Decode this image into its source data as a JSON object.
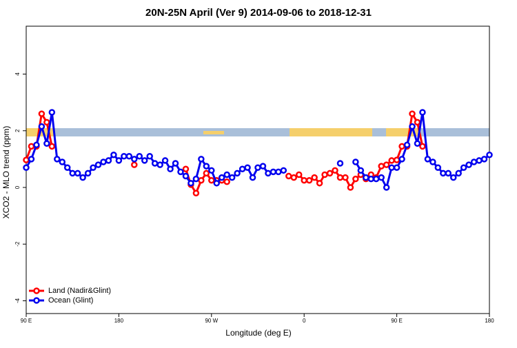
{
  "chart_data": {
    "type": "line",
    "title": "20N-25N April (Ver 9)   2014-09-06 to 2018-12-31",
    "x_label": "Longitude (deg E)",
    "y_label": "XCO2 - MLO trend (ppm)",
    "x": [
      90,
      95,
      100,
      105,
      110,
      115,
      120,
      125,
      130,
      135,
      140,
      145,
      150,
      155,
      160,
      165,
      170,
      175,
      180,
      185,
      190,
      195,
      200,
      205,
      210,
      215,
      220,
      225,
      230,
      235,
      240,
      245,
      250,
      255,
      260,
      265,
      270,
      275,
      280,
      285,
      290,
      295,
      300,
      305,
      310,
      315,
      320,
      325,
      330,
      335,
      340,
      345,
      350,
      355,
      360,
      365,
      370,
      375,
      380,
      385,
      390,
      395,
      400,
      405,
      410,
      415,
      420,
      425,
      430,
      435,
      440,
      445,
      450,
      455,
      460,
      465,
      470,
      475,
      480,
      485,
      490,
      495,
      500,
      505,
      510,
      515,
      520,
      525,
      530,
      535,
      540
    ],
    "series": [
      {
        "name": "Land (Nadir&Glint)",
        "color": "#ff0000",
        "values": [
          0.97,
          1.45,
          1.45,
          2.6,
          2.3,
          1.45,
          null,
          null,
          null,
          null,
          null,
          null,
          null,
          null,
          null,
          null,
          null,
          null,
          null,
          null,
          null,
          0.8,
          null,
          null,
          null,
          null,
          null,
          null,
          null,
          null,
          null,
          0.65,
          0.1,
          -0.2,
          0.25,
          0.5,
          0.25,
          0.25,
          0.25,
          0.2,
          null,
          null,
          null,
          null,
          null,
          null,
          null,
          null,
          null,
          null,
          null,
          0.4,
          0.35,
          0.45,
          0.25,
          0.25,
          0.35,
          0.15,
          0.45,
          0.5,
          0.6,
          0.35,
          0.35,
          0.0,
          0.3,
          0.45,
          0.3,
          0.45,
          0.35,
          0.75,
          0.8,
          0.95,
          0.97,
          1.45,
          1.45,
          2.6,
          2.3,
          1.45,
          null,
          null,
          null,
          null,
          null,
          null,
          null,
          null,
          null,
          null,
          null,
          null,
          null
        ]
      },
      {
        "name": "Ocean (Glint)",
        "color": "#0000ee",
        "values": [
          0.7,
          1.0,
          1.5,
          2.15,
          1.55,
          2.65,
          1.0,
          0.9,
          0.7,
          0.5,
          0.5,
          0.35,
          0.5,
          0.7,
          0.8,
          0.9,
          0.95,
          1.15,
          0.95,
          1.1,
          1.1,
          1.0,
          1.1,
          0.95,
          1.1,
          0.85,
          0.8,
          0.95,
          0.65,
          0.85,
          0.55,
          0.4,
          0.15,
          0.3,
          1.0,
          0.75,
          0.6,
          0.15,
          0.35,
          0.45,
          0.35,
          0.5,
          0.65,
          0.7,
          0.35,
          0.7,
          0.75,
          0.5,
          0.55,
          0.55,
          0.6,
          null,
          null,
          null,
          null,
          null,
          null,
          null,
          null,
          null,
          null,
          0.85,
          null,
          null,
          0.9,
          0.6,
          0.35,
          0.3,
          0.3,
          0.35,
          0.0,
          0.7,
          0.7,
          1.0,
          1.5,
          2.15,
          1.55,
          2.65,
          1.0,
          0.9,
          0.7,
          0.5,
          0.5,
          0.35,
          0.5,
          0.7,
          0.8,
          0.9,
          0.95,
          1.0,
          1.15
        ]
      }
    ],
    "xlim": [
      90,
      540
    ],
    "ylim": [
      -4.45,
      5.69
    ],
    "xticks": [
      {
        "value": 90,
        "label": "90 E"
      },
      180,
      {
        "value": 270,
        "label": "90 W"
      },
      {
        "value": 360,
        "label": "0"
      },
      {
        "value": 450,
        "label": "90 E"
      },
      {
        "value": 540,
        "label": "180"
      }
    ],
    "yticks": [
      -4,
      -2,
      0,
      2,
      4
    ],
    "legend": "bottom-left"
  }
}
